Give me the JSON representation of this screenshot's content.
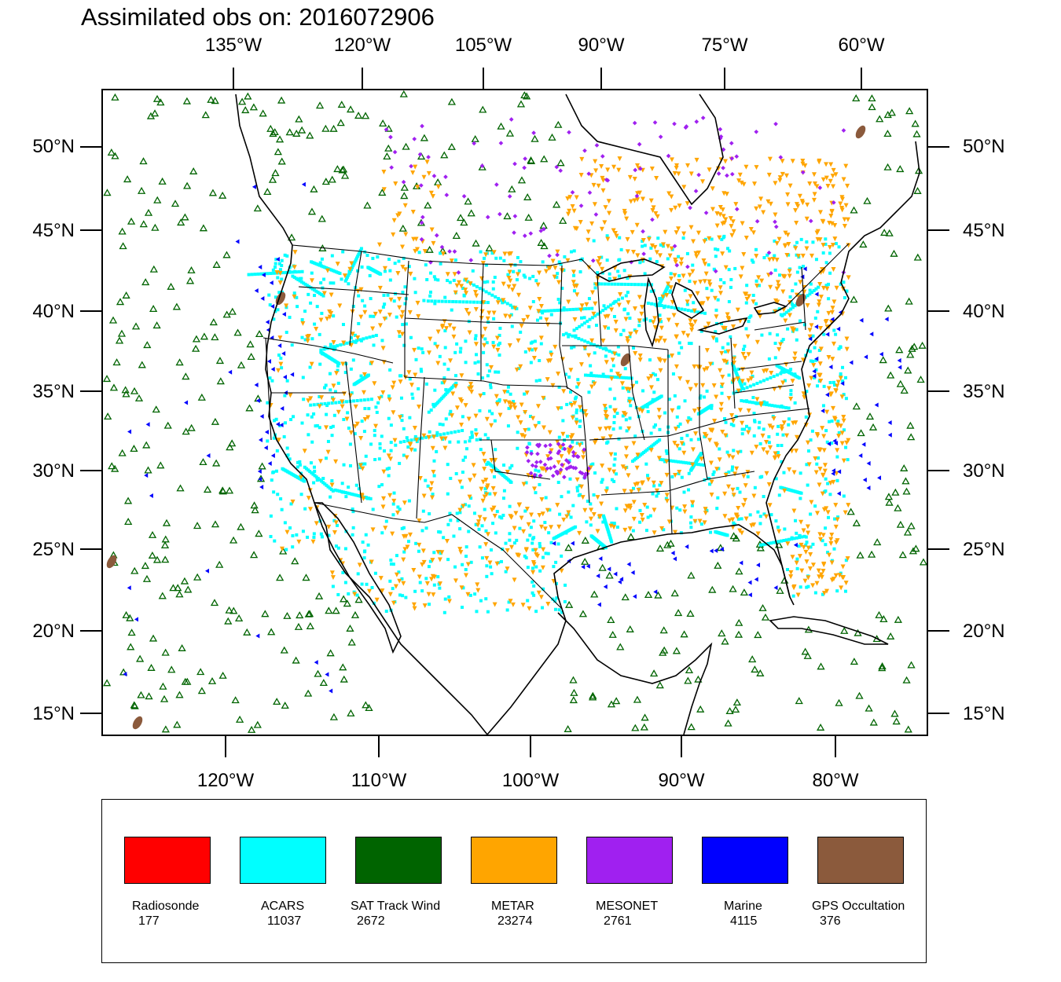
{
  "title": "Assimilated obs on: 2016072906",
  "axes": {
    "top_ticks": [
      "135°W",
      "120°W",
      "105°W",
      "90°W",
      "75°W",
      "60°W"
    ],
    "bottom_ticks": [
      "120°W",
      "110°W",
      "100°W",
      "90°W",
      "80°W"
    ],
    "left_ticks": [
      "50°N",
      "45°N",
      "40°N",
      "35°N",
      "30°N",
      "25°N",
      "20°N",
      "15°N"
    ],
    "right_ticks": [
      "50°N",
      "45°N",
      "40°N",
      "35°N",
      "30°N",
      "25°N",
      "20°N",
      "15°N"
    ]
  },
  "map": {
    "region": "Continental United States, Mexico, Gulf of Mexico, Caribbean",
    "lat_range": [
      14,
      54
    ],
    "lon_range": [
      -128,
      -74
    ],
    "coastline_color": "#000000"
  },
  "legend": [
    {
      "name": "Radiosonde",
      "count": "177",
      "color": "#ff0000"
    },
    {
      "name": "ACARS",
      "count": "11037",
      "color": "#00ffff"
    },
    {
      "name": "SAT Track Wind",
      "count": "2672",
      "color": "#006400"
    },
    {
      "name": "METAR",
      "count": "23274",
      "color": "#ffa500"
    },
    {
      "name": "MESONET",
      "count": "2761",
      "color": "#a020f0"
    },
    {
      "name": "Marine",
      "count": "4115",
      "color": "#0000ff"
    },
    {
      "name": "GPS Occultation",
      "count": "376",
      "color": "#8b5a3c"
    }
  ]
}
